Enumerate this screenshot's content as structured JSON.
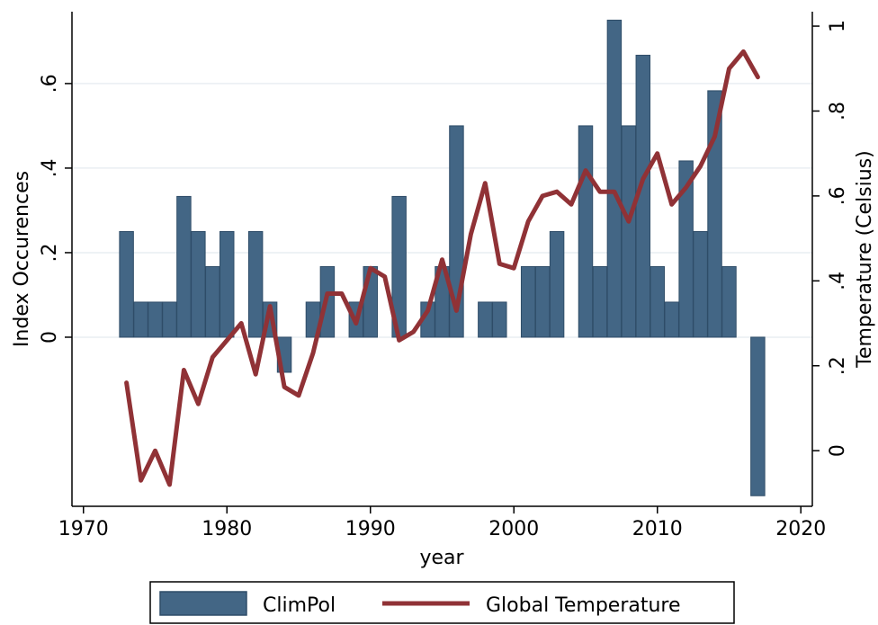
{
  "chart_data": {
    "type": "bar+line",
    "xlabel": "year",
    "ylabel_left": "Index Occurences",
    "ylabel_right": "Temperature (Celsius)",
    "x_ticks": [
      1970,
      1980,
      1990,
      2000,
      2010,
      2020
    ],
    "x_tick_labels": [
      "1970",
      "1980",
      "1990",
      "2000",
      "2010",
      "2020"
    ],
    "y_left_ticks": [
      0,
      0.2,
      0.4,
      0.6
    ],
    "y_left_tick_labels": [
      "0",
      ".2",
      ".4",
      ".6"
    ],
    "y_right_ticks": [
      0,
      0.2,
      0.4,
      0.6,
      0.8,
      1.0
    ],
    "y_right_tick_labels": [
      "0",
      ".2",
      ".4",
      ".6",
      ".8",
      "1"
    ],
    "xlim": [
      1969.2,
      2020.8
    ],
    "ylim_left": [
      -0.4,
      0.77
    ],
    "ylim_right": [
      -0.131,
      1.034
    ],
    "grid": "horizontal at left-axis ticks",
    "legend_position": "bottom",
    "colors": {
      "bars": "#436685",
      "bars_edge": "#2f4d68",
      "line": "#903236"
    },
    "series": [
      {
        "name": "ClimPol",
        "type": "bar",
        "x": [
          1973,
          1974,
          1975,
          1976,
          1977,
          1978,
          1979,
          1980,
          1982,
          1983,
          1984,
          1986,
          1987,
          1989,
          1990,
          1992,
          1994,
          1995,
          1996,
          1998,
          1999,
          2001,
          2002,
          2003,
          2005,
          2006,
          2007,
          2008,
          2009,
          2010,
          2011,
          2012,
          2013,
          2014,
          2015,
          2017
        ],
        "values": [
          0.25,
          0.083,
          0.083,
          0.083,
          0.333,
          0.25,
          0.167,
          0.25,
          0.25,
          0.083,
          -0.083,
          0.083,
          0.167,
          0.083,
          0.167,
          0.333,
          0.083,
          0.167,
          0.5,
          0.083,
          0.083,
          0.167,
          0.167,
          0.25,
          0.5,
          0.167,
          0.75,
          0.5,
          0.667,
          0.167,
          0.083,
          0.417,
          0.25,
          0.583,
          0.167,
          -0.375
        ]
      },
      {
        "name": "Global Temperature",
        "type": "line",
        "x": [
          1973,
          1974,
          1975,
          1976,
          1977,
          1978,
          1979,
          1980,
          1981,
          1982,
          1983,
          1984,
          1985,
          1986,
          1987,
          1988,
          1989,
          1990,
          1991,
          1992,
          1993,
          1994,
          1995,
          1996,
          1997,
          1998,
          1999,
          2000,
          2001,
          2002,
          2003,
          2004,
          2005,
          2006,
          2007,
          2008,
          2009,
          2010,
          2011,
          2012,
          2013,
          2014,
          2015,
          2016,
          2017
        ],
        "values": [
          0.16,
          -0.07,
          0.0,
          -0.08,
          0.19,
          0.11,
          0.22,
          0.26,
          0.3,
          0.18,
          0.34,
          0.15,
          0.13,
          0.23,
          0.37,
          0.37,
          0.3,
          0.43,
          0.41,
          0.26,
          0.28,
          0.33,
          0.45,
          0.33,
          0.51,
          0.63,
          0.44,
          0.43,
          0.54,
          0.6,
          0.61,
          0.58,
          0.66,
          0.61,
          0.61,
          0.54,
          0.64,
          0.7,
          0.58,
          0.62,
          0.67,
          0.74,
          0.9,
          0.94,
          0.88
        ]
      }
    ]
  }
}
